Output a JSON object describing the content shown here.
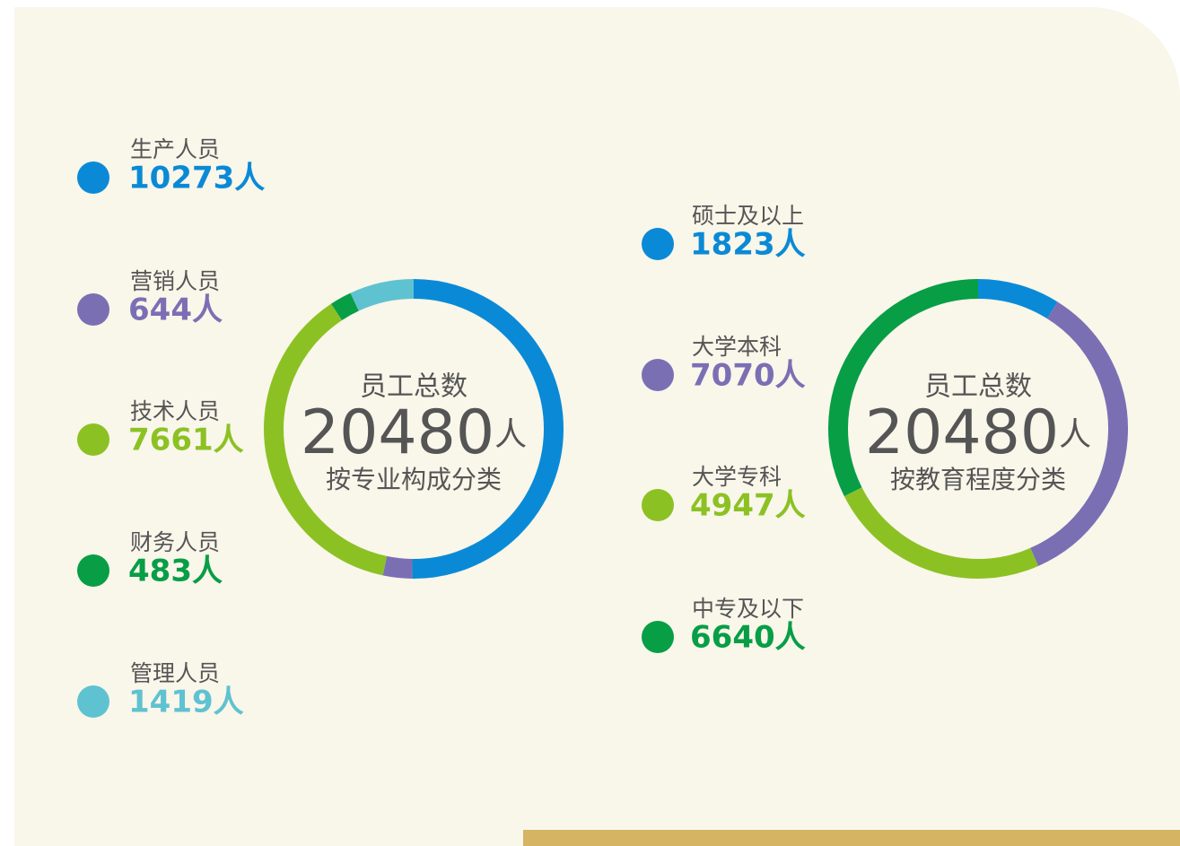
{
  "chart_data": [
    {
      "type": "donut",
      "center_title": "员工总数",
      "total": 20480,
      "total_unit": "人",
      "subtitle": "按专业构成分类",
      "categories": [
        "生产人员",
        "营销人员",
        "技术人员",
        "财务人员",
        "管理人员"
      ],
      "values": [
        10273,
        644,
        7661,
        483,
        1419
      ],
      "value_labels": [
        "10273人",
        "644人",
        "7661人",
        "483人",
        "1419人"
      ],
      "colors": [
        "#0a8ad6",
        "#7b6fb4",
        "#8cc124",
        "#079e46",
        "#5fc2d1"
      ]
    },
    {
      "type": "donut",
      "center_title": "员工总数",
      "total": 20480,
      "total_unit": "人",
      "subtitle": "按教育程度分类",
      "categories": [
        "硕士及以上",
        "大学本科",
        "大学专科",
        "中专及以下"
      ],
      "values": [
        1823,
        7070,
        4947,
        6640
      ],
      "value_labels": [
        "1823人",
        "7070人",
        "4947人",
        "6640人"
      ],
      "colors": [
        "#0a8ad6",
        "#7b6fb4",
        "#8cc124",
        "#079e46"
      ]
    }
  ]
}
